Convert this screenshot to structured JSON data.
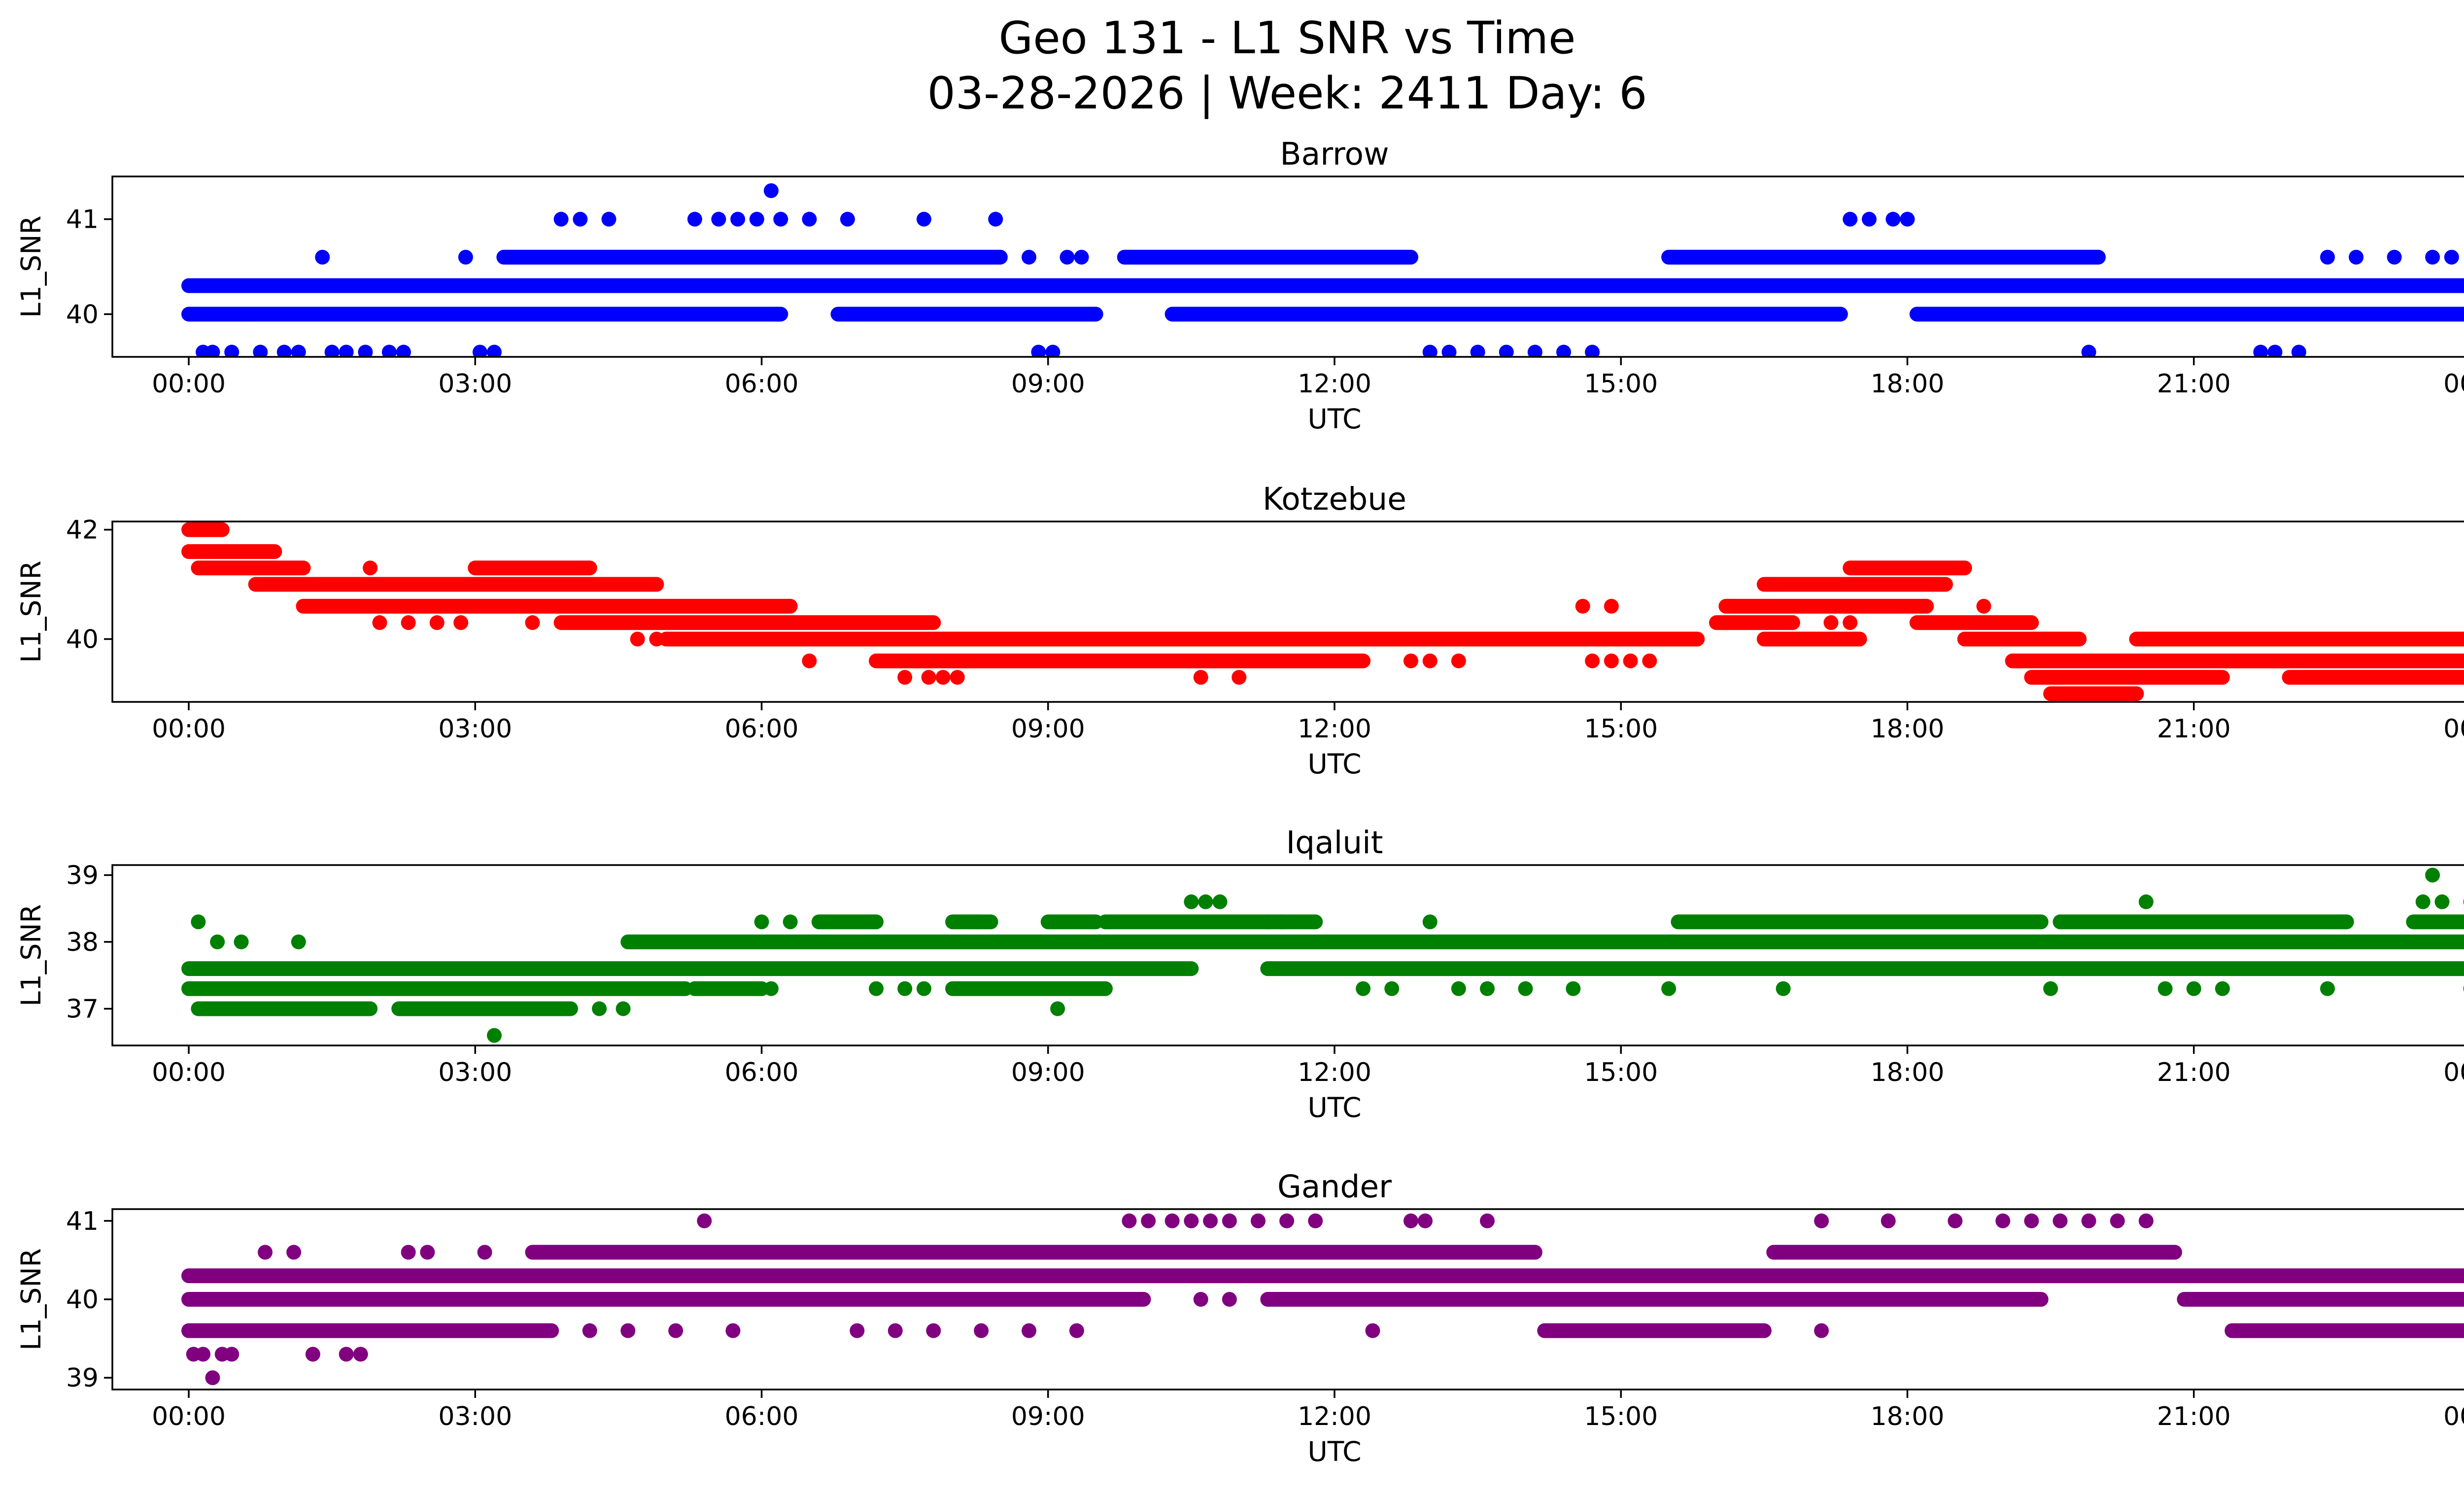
{
  "figure": {
    "title_line1": "Geo 131 - L1 SNR vs Time",
    "title_line2": "03-28-2026 | Week: 2411 Day: 6"
  },
  "chart_data": [
    {
      "type": "scatter",
      "title": "Barrow",
      "xlabel": "UTC",
      "ylabel": "L1_SNR",
      "color": "#0000ff",
      "xlim": [
        -0.8,
        24.8
      ],
      "ylim": [
        39.55,
        41.45
      ],
      "xticks": [
        "00:00",
        "03:00",
        "06:00",
        "09:00",
        "12:00",
        "15:00",
        "18:00",
        "21:00",
        "00:00"
      ],
      "yticks": [
        40,
        41
      ],
      "continuous_bands": [
        {
          "y": 40.3,
          "x_ranges": [
            [
              0.0,
              24.0
            ]
          ]
        },
        {
          "y": 40.0,
          "x_ranges": [
            [
              0.0,
              6.2
            ],
            [
              6.8,
              9.5
            ],
            [
              10.3,
              17.3
            ],
            [
              18.1,
              24.0
            ]
          ]
        },
        {
          "y": 40.6,
          "x_ranges": [
            [
              3.3,
              8.5
            ],
            [
              9.8,
              12.8
            ],
            [
              15.5,
              20.0
            ]
          ]
        }
      ],
      "points": [
        [
          0.15,
          39.6
        ],
        [
          0.25,
          39.6
        ],
        [
          0.45,
          39.6
        ],
        [
          0.75,
          39.6
        ],
        [
          1.0,
          39.6
        ],
        [
          1.15,
          39.6
        ],
        [
          1.4,
          40.6
        ],
        [
          1.5,
          39.6
        ],
        [
          1.65,
          39.6
        ],
        [
          1.85,
          39.6
        ],
        [
          2.1,
          39.6
        ],
        [
          2.25,
          39.6
        ],
        [
          2.9,
          40.6
        ],
        [
          3.05,
          39.6
        ],
        [
          3.2,
          39.6
        ],
        [
          3.9,
          41.0
        ],
        [
          4.1,
          41.0
        ],
        [
          4.4,
          41.0
        ],
        [
          5.3,
          41.0
        ],
        [
          5.55,
          41.0
        ],
        [
          5.75,
          41.0
        ],
        [
          5.95,
          41.0
        ],
        [
          6.1,
          41.3
        ],
        [
          6.2,
          41.0
        ],
        [
          6.5,
          41.0
        ],
        [
          6.9,
          41.0
        ],
        [
          7.7,
          41.0
        ],
        [
          8.45,
          41.0
        ],
        [
          8.8,
          40.6
        ],
        [
          8.9,
          39.6
        ],
        [
          9.05,
          39.6
        ],
        [
          9.2,
          40.6
        ],
        [
          9.35,
          40.6
        ],
        [
          13.0,
          39.6
        ],
        [
          13.2,
          39.6
        ],
        [
          13.5,
          39.6
        ],
        [
          13.8,
          39.6
        ],
        [
          14.1,
          39.6
        ],
        [
          14.4,
          39.6
        ],
        [
          14.7,
          39.6
        ],
        [
          17.4,
          41.0
        ],
        [
          17.6,
          41.0
        ],
        [
          17.85,
          41.0
        ],
        [
          18.0,
          41.0
        ],
        [
          19.9,
          39.6
        ],
        [
          21.7,
          39.6
        ],
        [
          21.85,
          39.6
        ],
        [
          22.1,
          39.6
        ],
        [
          22.4,
          40.6
        ],
        [
          22.7,
          40.6
        ],
        [
          23.1,
          40.6
        ],
        [
          23.5,
          40.6
        ],
        [
          23.7,
          40.6
        ],
        [
          23.95,
          40.6
        ]
      ]
    },
    {
      "type": "scatter",
      "title": "Kotzebue",
      "xlabel": "UTC",
      "ylabel": "L1_SNR",
      "color": "#ff0000",
      "xlim": [
        -0.8,
        24.8
      ],
      "ylim": [
        38.85,
        42.15
      ],
      "xticks": [
        "00:00",
        "03:00",
        "06:00",
        "09:00",
        "12:00",
        "15:00",
        "18:00",
        "21:00",
        "00:00"
      ],
      "yticks": [
        40,
        42
      ],
      "continuous_bands": [
        {
          "y": 42.0,
          "x_ranges": [
            [
              0.0,
              0.35
            ]
          ]
        },
        {
          "y": 41.6,
          "x_ranges": [
            [
              0.0,
              0.9
            ]
          ]
        },
        {
          "y": 41.3,
          "x_ranges": [
            [
              0.1,
              1.2
            ],
            [
              3.0,
              4.2
            ],
            [
              17.4,
              18.6
            ]
          ]
        },
        {
          "y": 41.0,
          "x_ranges": [
            [
              0.7,
              4.9
            ],
            [
              16.5,
              18.4
            ]
          ]
        },
        {
          "y": 40.6,
          "x_ranges": [
            [
              1.2,
              6.3
            ],
            [
              16.1,
              18.2
            ]
          ]
        },
        {
          "y": 40.3,
          "x_ranges": [
            [
              3.9,
              7.8
            ],
            [
              16.0,
              16.8
            ],
            [
              18.1,
              19.3
            ]
          ]
        },
        {
          "y": 40.0,
          "x_ranges": [
            [
              5.0,
              15.8
            ],
            [
              16.5,
              17.5
            ],
            [
              18.6,
              19.8
            ],
            [
              20.4,
              24.0
            ]
          ]
        },
        {
          "y": 39.6,
          "x_ranges": [
            [
              7.2,
              12.3
            ],
            [
              19.1,
              24.0
            ]
          ]
        },
        {
          "y": 39.3,
          "x_ranges": [
            [
              19.3,
              21.3
            ],
            [
              22.0,
              24.0
            ]
          ]
        },
        {
          "y": 39.0,
          "x_ranges": [
            [
              19.5,
              20.4
            ]
          ]
        }
      ],
      "points": [
        [
          1.9,
          41.3
        ],
        [
          2.0,
          40.3
        ],
        [
          2.3,
          40.3
        ],
        [
          2.6,
          40.3
        ],
        [
          2.85,
          40.3
        ],
        [
          3.6,
          40.3
        ],
        [
          4.5,
          41.0
        ],
        [
          4.7,
          40.0
        ],
        [
          4.9,
          40.0
        ],
        [
          6.5,
          39.6
        ],
        [
          7.5,
          39.3
        ],
        [
          7.75,
          39.3
        ],
        [
          7.9,
          39.3
        ],
        [
          8.05,
          39.3
        ],
        [
          10.6,
          39.3
        ],
        [
          11.0,
          39.3
        ],
        [
          12.8,
          39.6
        ],
        [
          13.0,
          39.6
        ],
        [
          13.3,
          39.6
        ],
        [
          14.7,
          39.6
        ],
        [
          14.9,
          39.6
        ],
        [
          14.6,
          40.6
        ],
        [
          14.9,
          40.6
        ],
        [
          15.1,
          39.6
        ],
        [
          15.3,
          39.6
        ],
        [
          16.2,
          40.6
        ],
        [
          17.2,
          40.3
        ],
        [
          17.4,
          40.3
        ],
        [
          18.8,
          40.6
        ],
        [
          21.7,
          39.6
        ],
        [
          23.2,
          40.0
        ],
        [
          23.4,
          40.0
        ],
        [
          23.8,
          40.0
        ],
        [
          23.9,
          40.0
        ]
      ]
    },
    {
      "type": "scatter",
      "title": "Iqaluit",
      "xlabel": "UTC",
      "ylabel": "L1_SNR",
      "color": "#008000",
      "xlim": [
        -0.8,
        24.8
      ],
      "ylim": [
        36.45,
        39.15
      ],
      "xticks": [
        "00:00",
        "03:00",
        "06:00",
        "09:00",
        "12:00",
        "15:00",
        "18:00",
        "21:00",
        "00:00"
      ],
      "yticks": [
        37,
        38,
        39
      ],
      "continuous_bands": [
        {
          "y": 37.6,
          "x_ranges": [
            [
              0.0,
              10.5
            ],
            [
              11.3,
              24.0
            ]
          ]
        },
        {
          "y": 37.3,
          "x_ranges": [
            [
              0.0,
              5.2
            ],
            [
              5.3,
              6.0
            ],
            [
              8.0,
              9.6
            ]
          ]
        },
        {
          "y": 37.0,
          "x_ranges": [
            [
              0.1,
              1.9
            ],
            [
              2.2,
              4.0
            ]
          ]
        },
        {
          "y": 38.0,
          "x_ranges": [
            [
              4.6,
              24.0
            ]
          ]
        },
        {
          "y": 38.3,
          "x_ranges": [
            [
              6.6,
              7.2
            ],
            [
              8.0,
              8.4
            ],
            [
              9.0,
              9.5
            ],
            [
              9.6,
              11.8
            ],
            [
              15.6,
              19.4
            ],
            [
              19.6,
              22.6
            ],
            [
              23.3,
              24.0
            ]
          ]
        }
      ],
      "points": [
        [
          0.1,
          38.3
        ],
        [
          0.3,
          38.0
        ],
        [
          0.55,
          38.0
        ],
        [
          1.15,
          38.0
        ],
        [
          3.2,
          36.6
        ],
        [
          4.3,
          37.0
        ],
        [
          4.55,
          37.0
        ],
        [
          6.0,
          38.3
        ],
        [
          6.3,
          38.3
        ],
        [
          6.1,
          37.3
        ],
        [
          7.2,
          37.3
        ],
        [
          7.5,
          37.3
        ],
        [
          7.7,
          37.3
        ],
        [
          8.25,
          38.3
        ],
        [
          9.1,
          37.0
        ],
        [
          10.5,
          38.6
        ],
        [
          10.65,
          38.6
        ],
        [
          10.8,
          38.6
        ],
        [
          11.3,
          38.3
        ],
        [
          11.45,
          38.3
        ],
        [
          12.3,
          37.3
        ],
        [
          12.6,
          37.3
        ],
        [
          13.0,
          38.3
        ],
        [
          13.3,
          37.3
        ],
        [
          13.6,
          37.3
        ],
        [
          14.0,
          37.3
        ],
        [
          14.5,
          37.3
        ],
        [
          15.5,
          37.3
        ],
        [
          16.7,
          37.3
        ],
        [
          19.5,
          37.3
        ],
        [
          20.5,
          38.6
        ],
        [
          20.7,
          37.3
        ],
        [
          21.0,
          37.3
        ],
        [
          21.3,
          37.3
        ],
        [
          22.4,
          37.3
        ],
        [
          23.5,
          39.0
        ],
        [
          23.4,
          38.6
        ],
        [
          23.6,
          38.6
        ],
        [
          23.9,
          38.6
        ],
        [
          23.9,
          37.3
        ]
      ]
    },
    {
      "type": "scatter",
      "title": "Gander",
      "xlabel": "UTC",
      "ylabel": "L1_SNR",
      "color": "#800080",
      "xlim": [
        -0.8,
        24.8
      ],
      "ylim": [
        38.85,
        41.15
      ],
      "xticks": [
        "00:00",
        "03:00",
        "06:00",
        "09:00",
        "12:00",
        "15:00",
        "18:00",
        "21:00",
        "00:00"
      ],
      "yticks": [
        39,
        40,
        41
      ],
      "continuous_bands": [
        {
          "y": 40.3,
          "x_ranges": [
            [
              0.0,
              24.0
            ]
          ]
        },
        {
          "y": 40.0,
          "x_ranges": [
            [
              0.0,
              10.0
            ],
            [
              11.3,
              19.4
            ],
            [
              20.9,
              24.0
            ]
          ]
        },
        {
          "y": 39.6,
          "x_ranges": [
            [
              0.0,
              3.8
            ],
            [
              14.2,
              16.5
            ],
            [
              21.4,
              24.0
            ]
          ]
        },
        {
          "y": 40.6,
          "x_ranges": [
            [
              3.6,
              14.1
            ],
            [
              16.6,
              20.8
            ]
          ]
        }
      ],
      "points": [
        [
          0.05,
          39.3
        ],
        [
          0.15,
          39.3
        ],
        [
          0.35,
          39.3
        ],
        [
          0.45,
          39.3
        ],
        [
          0.25,
          39.0
        ],
        [
          0.8,
          40.6
        ],
        [
          1.1,
          40.6
        ],
        [
          1.3,
          39.3
        ],
        [
          1.65,
          39.3
        ],
        [
          1.8,
          39.3
        ],
        [
          2.3,
          40.6
        ],
        [
          2.5,
          40.6
        ],
        [
          3.1,
          40.6
        ],
        [
          4.2,
          39.6
        ],
        [
          4.6,
          39.6
        ],
        [
          5.1,
          39.6
        ],
        [
          5.4,
          41.0
        ],
        [
          5.7,
          39.6
        ],
        [
          7.0,
          39.6
        ],
        [
          7.4,
          39.6
        ],
        [
          7.8,
          39.6
        ],
        [
          8.3,
          39.6
        ],
        [
          8.8,
          39.6
        ],
        [
          9.3,
          39.6
        ],
        [
          9.85,
          41.0
        ],
        [
          10.05,
          41.0
        ],
        [
          10.3,
          41.0
        ],
        [
          10.5,
          41.0
        ],
        [
          10.7,
          41.0
        ],
        [
          10.9,
          41.0
        ],
        [
          11.2,
          41.0
        ],
        [
          11.5,
          41.0
        ],
        [
          11.8,
          41.0
        ],
        [
          10.6,
          40.0
        ],
        [
          10.9,
          40.0
        ],
        [
          11.5,
          40.0
        ],
        [
          12.4,
          39.6
        ],
        [
          12.8,
          41.0
        ],
        [
          12.95,
          41.0
        ],
        [
          13.6,
          41.0
        ],
        [
          17.1,
          39.6
        ],
        [
          17.1,
          41.0
        ],
        [
          17.8,
          41.0
        ],
        [
          18.5,
          41.0
        ],
        [
          19.0,
          41.0
        ],
        [
          19.3,
          41.0
        ],
        [
          19.6,
          41.0
        ],
        [
          19.9,
          41.0
        ],
        [
          20.2,
          41.0
        ],
        [
          20.5,
          41.0
        ]
      ]
    }
  ]
}
